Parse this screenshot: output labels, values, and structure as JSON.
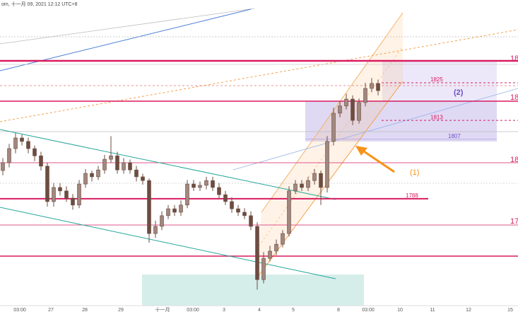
{
  "header": "om, 十一月 09, 2021 12:12 UTC+8",
  "chart_data": {
    "type": "candlestick",
    "color": "#6d4c41",
    "ylim": [
      1754.35,
      1851.41
    ],
    "open": [
      1797.0,
      1799.5,
      1804.0,
      1807.4,
      1806.3,
      1804.0,
      1801.7,
      1798.4,
      1787.1,
      1791.6,
      1790.5,
      1788.2,
      1786.0,
      1792.7,
      1796.1,
      1795.0,
      1797.2,
      1800.6,
      1801.7,
      1797.2,
      1799.5,
      1797.2,
      1795.0,
      1793.8,
      1776.9,
      1779.2,
      1782.6,
      1784.8,
      1783.7,
      1786.0,
      1792.7,
      1791.6,
      1792.3,
      1793.8,
      1791.6,
      1789.3,
      1787.1,
      1784.8,
      1783.7,
      1782.6,
      1779.2,
      1762.2,
      1769.0,
      1771.3,
      1773.5,
      1776.9,
      1790.5,
      1792.7,
      1791.6,
      1793.8,
      1796.1,
      1791.6,
      1806.3,
      1815.3,
      1817.6,
      1819.8,
      1813.0,
      1818.7,
      1823.2,
      1824.8
    ],
    "high": [
      1801,
      1805.5,
      1809,
      1808.5,
      1807.5,
      1805,
      1803,
      1799.5,
      1793,
      1793,
      1792,
      1789.5,
      1794,
      1797.5,
      1797,
      1798.5,
      1802,
      1808,
      1803,
      1801,
      1800.5,
      1798.5,
      1796,
      1794.5,
      1781,
      1784,
      1786,
      1786,
      1787.5,
      1794,
      1794,
      1793.5,
      1795,
      1795,
      1793,
      1790.5,
      1788.5,
      1786,
      1785,
      1784,
      1780.5,
      1771,
      1773,
      1775,
      1778,
      1792,
      1794,
      1794,
      1795,
      1797.5,
      1797,
      1808,
      1817,
      1819,
      1821.5,
      1821,
      1820,
      1825,
      1826.5,
      1826
    ],
    "low": [
      1795.5,
      1798,
      1802.5,
      1805,
      1802.5,
      1800,
      1797,
      1785.5,
      1785.5,
      1789,
      1787,
      1784.5,
      1785,
      1791.5,
      1793.5,
      1794,
      1796,
      1799.5,
      1796,
      1796,
      1796,
      1793.5,
      1792.5,
      1774,
      1775.5,
      1778,
      1781.5,
      1782.5,
      1782.5,
      1785,
      1790.5,
      1790.5,
      1791,
      1790.5,
      1788,
      1786,
      1783.5,
      1782.5,
      1781.5,
      1778,
      1759,
      1761,
      1768,
      1770,
      1772.5,
      1776,
      1789.5,
      1790.5,
      1790.5,
      1792.5,
      1786,
      1790,
      1805,
      1814,
      1816.5,
      1811.5,
      1812,
      1817.5,
      1822,
      1821
    ],
    "close": [
      1799.5,
      1804.0,
      1807.4,
      1806.3,
      1804.0,
      1801.7,
      1798.4,
      1787.1,
      1791.6,
      1790.5,
      1788.2,
      1786.0,
      1792.7,
      1796.1,
      1795.0,
      1797.2,
      1800.6,
      1801.7,
      1797.2,
      1799.5,
      1797.2,
      1795.0,
      1793.8,
      1776.9,
      1779.2,
      1782.6,
      1784.8,
      1783.7,
      1786.0,
      1792.7,
      1791.6,
      1792.3,
      1793.8,
      1791.6,
      1789.3,
      1787.1,
      1784.8,
      1783.7,
      1782.6,
      1779.2,
      1762.2,
      1769.0,
      1771.3,
      1773.5,
      1776.9,
      1790.5,
      1792.7,
      1791.6,
      1793.8,
      1796.1,
      1791.6,
      1806.3,
      1815.3,
      1817.6,
      1819.8,
      1813.0,
      1818.7,
      1823.2,
      1824.8,
      1822.5
    ],
    "x_labels": [
      "03:00",
      "27",
      "28",
      "29",
      "十一月",
      "03:00",
      "3",
      "4",
      "5",
      "8",
      "03:00",
      "10",
      "11",
      "12",
      "15"
    ],
    "levels": [
      {
        "value": 1825,
        "label": "1825"
      },
      {
        "value": 1813,
        "label": "1813"
      },
      {
        "value": 1807,
        "label": "1807"
      },
      {
        "value": 1788,
        "label": "1788"
      }
    ],
    "annotations": [
      "(1)",
      "(2)"
    ],
    "edge_labels": [
      "18",
      "18",
      "18",
      "17"
    ]
  }
}
